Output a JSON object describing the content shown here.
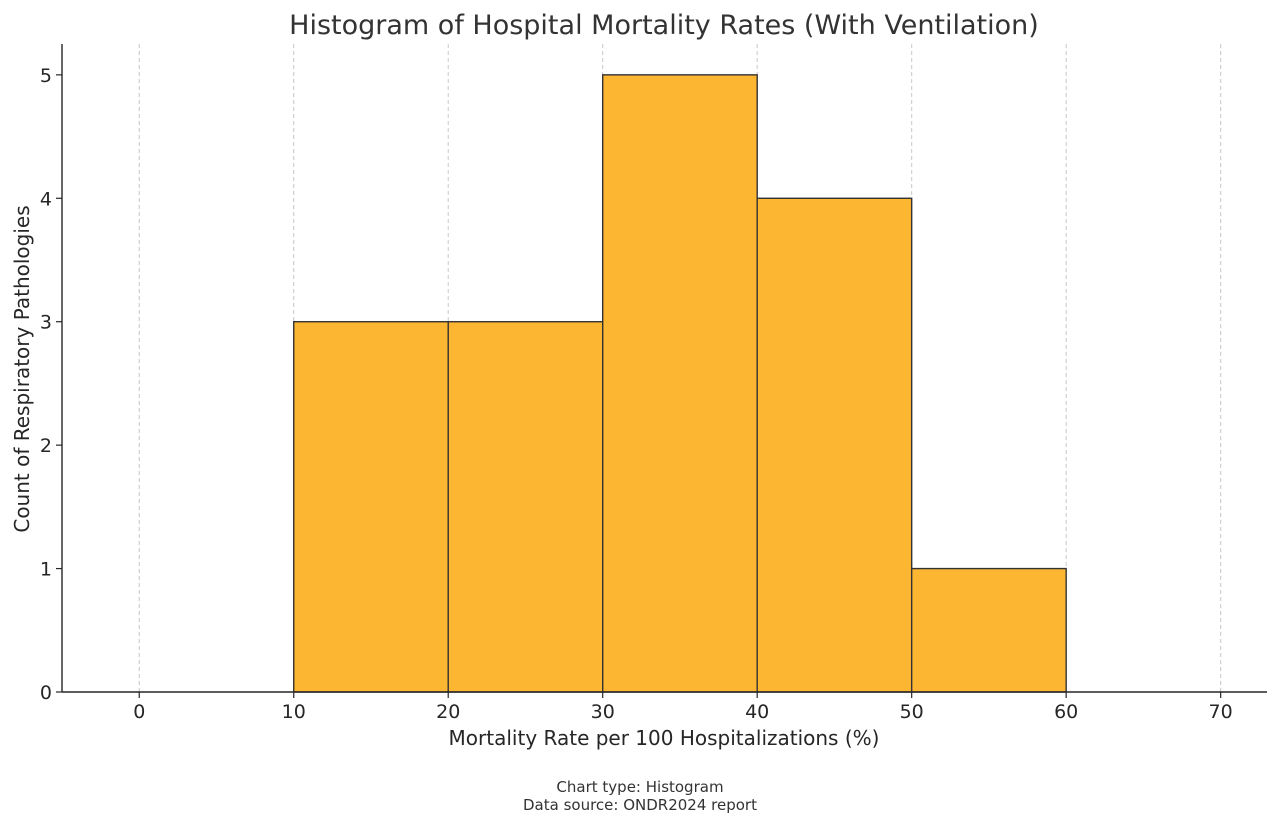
{
  "chart_data": {
    "type": "bar",
    "subtype": "histogram",
    "title": "Histogram of Hospital Mortality Rates (With Ventilation)",
    "xlabel": "Mortality Rate per 100 Hospitalizations (%)",
    "ylabel": "Count of Respiratory Pathologies",
    "bins": [
      {
        "start": 10,
        "end": 20,
        "count": 3
      },
      {
        "start": 20,
        "end": 30,
        "count": 3
      },
      {
        "start": 30,
        "end": 40,
        "count": 5
      },
      {
        "start": 40,
        "end": 50,
        "count": 4
      },
      {
        "start": 50,
        "end": 60,
        "count": 1
      }
    ],
    "xlim": [
      -5,
      73
    ],
    "ylim": [
      0,
      5.25
    ],
    "xticks": [
      0,
      10,
      20,
      30,
      40,
      50,
      60,
      70
    ],
    "yticks": [
      0,
      1,
      2,
      3,
      4,
      5
    ],
    "grid": "vertical dashed",
    "bar_color": "#FDB632",
    "edge_color": "#333333"
  },
  "footnote": {
    "line1": "Chart type: Histogram",
    "line2": "Data source: ONDR2024 report"
  }
}
